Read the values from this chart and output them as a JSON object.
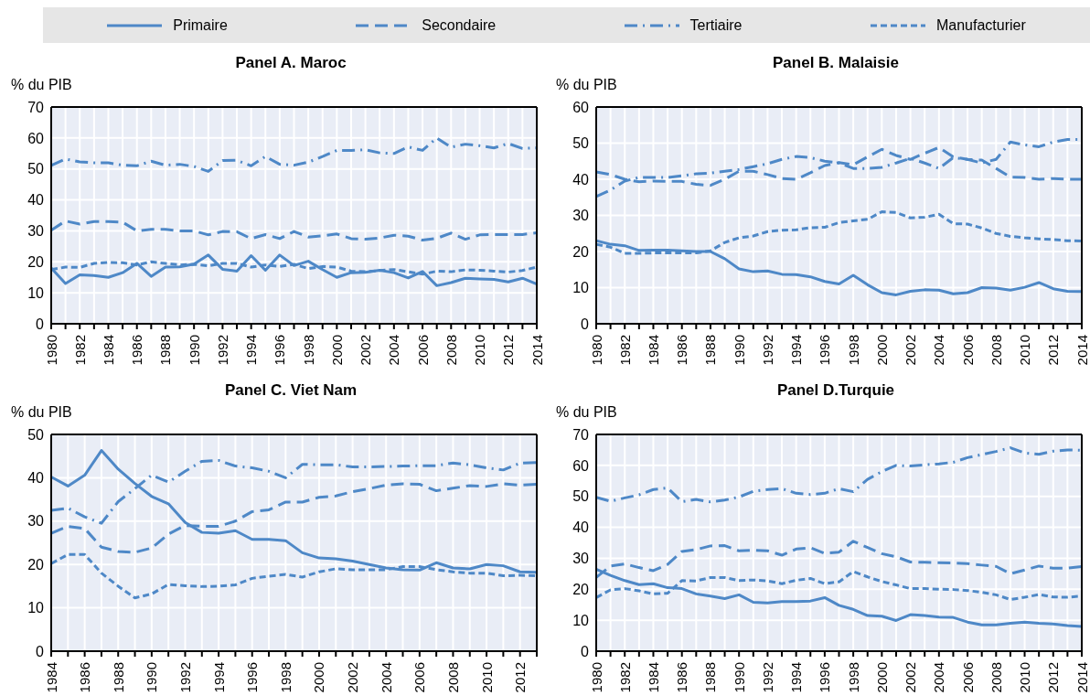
{
  "chart_data": [
    {
      "type": "line",
      "title": "Panel A. Maroc",
      "ylabel": "% du PIB",
      "legend": "top",
      "grid": true,
      "ylim": [
        0,
        70
      ],
      "yticks": [
        0,
        10,
        20,
        30,
        40,
        50,
        60,
        70
      ],
      "categories": [
        "1980",
        null,
        "1982",
        null,
        "1984",
        null,
        "1986",
        null,
        "1988",
        null,
        "1990",
        null,
        "1992",
        null,
        "1994",
        null,
        "1996",
        null,
        "1998",
        null,
        "2000",
        null,
        "2002",
        null,
        "2004",
        null,
        "2006",
        null,
        "2008",
        null,
        "2010",
        null,
        "2012",
        null,
        "2014"
      ],
      "series": [
        {
          "name": "Primaire",
          "color": "#4e88c7",
          "line_style": "solid",
          "values": [
            18,
            13,
            15.8,
            15.6,
            15,
            16.5,
            19.5,
            15.3,
            18.3,
            18.4,
            19.3,
            22.2,
            17.6,
            17,
            22,
            17.3,
            22.2,
            18.8,
            20.2,
            17.5,
            15,
            16.5,
            16.6,
            17.3,
            16.5,
            14.8,
            16.9,
            12.3,
            13.3,
            14.7,
            14.5,
            14.3,
            13.5,
            14.7,
            12.8
          ]
        },
        {
          "name": "Secondaire",
          "color": "#4e88c7",
          "line_style": "dashed",
          "values": [
            30.2,
            33.2,
            32.2,
            33,
            33,
            32.8,
            30,
            30.5,
            30.5,
            30,
            30,
            28.7,
            29.8,
            29.7,
            27.5,
            28.8,
            27.5,
            29.8,
            28,
            28.4,
            29,
            27.5,
            27.3,
            27.7,
            28.6,
            28.3,
            27,
            27.6,
            29.3,
            27.3,
            28.7,
            28.8,
            28.8,
            28.8,
            29.4
          ]
        },
        {
          "name": "Tertiaire",
          "color": "#4e88c7",
          "line_style": "dashdot",
          "values": [
            51.1,
            53.2,
            52.3,
            52,
            52,
            51.2,
            51,
            52.5,
            51.2,
            51.5,
            50.8,
            49.2,
            52.7,
            52.8,
            51,
            54,
            51.5,
            51.2,
            52.2,
            54,
            56,
            56,
            56.2,
            55.2,
            55,
            57.1,
            56,
            60,
            57,
            58,
            57.5,
            56.8,
            58.2,
            56.6,
            56.8
          ]
        },
        {
          "name": "Manufacturier",
          "color": "#4e88c7",
          "line_style": "dotted",
          "values": [
            17.5,
            18.3,
            18.2,
            19.5,
            19.8,
            19.7,
            19,
            20,
            19.5,
            19,
            19.2,
            18.7,
            19.5,
            19.5,
            18.3,
            19,
            18.5,
            19.2,
            17.8,
            18.5,
            18.3,
            17,
            16.8,
            17.2,
            17.5,
            16.8,
            16,
            17,
            16.8,
            17.4,
            17.3,
            17,
            16.7,
            17.2,
            18.3
          ]
        }
      ]
    },
    {
      "type": "line",
      "title": "Panel B. Malaisie",
      "ylabel": "% du PIB",
      "grid": true,
      "ylim": [
        0,
        60
      ],
      "yticks": [
        0,
        10,
        20,
        30,
        40,
        50,
        60
      ],
      "categories": [
        "1980",
        null,
        "1982",
        null,
        "1984",
        null,
        "1986",
        null,
        "1988",
        null,
        "1990",
        null,
        "1992",
        null,
        "1994",
        null,
        "1996",
        null,
        "1998",
        null,
        "2000",
        null,
        "2002",
        null,
        "2004",
        null,
        "2006",
        null,
        "2008",
        null,
        "2010",
        null,
        "2012",
        null,
        "2014"
      ],
      "series": [
        {
          "color": "#4e88c7",
          "line_style": "solid",
          "values": [
            23,
            22,
            21.6,
            20.3,
            20.4,
            20.4,
            20.2,
            20,
            20,
            18,
            15.2,
            14.4,
            14.6,
            13.7,
            13.6,
            13,
            11.7,
            11,
            13.4,
            10.8,
            8.6,
            8,
            9,
            9.4,
            9.3,
            8.3,
            8.6,
            10,
            9.9,
            9.3,
            10.1,
            11.4,
            9.7,
            9,
            8.9
          ]
        },
        {
          "color": "#4e88c7",
          "line_style": "dashed",
          "values": [
            42,
            41.3,
            40,
            39.3,
            39.5,
            39.4,
            39.4,
            38.6,
            38.3,
            40,
            42.2,
            42.2,
            41.3,
            40.2,
            40,
            41.8,
            43.8,
            44.6,
            44,
            46.2,
            48.3,
            46.6,
            45.5,
            47.2,
            48.8,
            46.2,
            45.5,
            45.3,
            43,
            40.6,
            40.5,
            40,
            40.2,
            40,
            40
          ]
        },
        {
          "color": "#4e88c7",
          "line_style": "dashdot",
          "values": [
            35.2,
            37,
            39.5,
            40.5,
            40.5,
            40.5,
            41,
            41.5,
            41.7,
            42.2,
            42.7,
            43.5,
            44.3,
            45.5,
            46.3,
            46,
            45,
            44.5,
            43,
            43,
            43.3,
            44.5,
            45.8,
            44.5,
            43,
            46,
            45.5,
            44.5,
            45.5,
            50.3,
            49.5,
            49,
            50.3,
            51,
            51
          ]
        },
        {
          "color": "#4e88c7",
          "line_style": "dotted",
          "values": [
            22,
            21.2,
            19.5,
            19.5,
            19.6,
            19.6,
            19.6,
            19.6,
            20.2,
            22.5,
            23.8,
            24.3,
            25.5,
            25.9,
            26,
            26.6,
            26.7,
            28,
            28.5,
            28.9,
            31,
            30.8,
            29.3,
            29.5,
            30.3,
            27.7,
            27.6,
            26.5,
            25,
            24.2,
            23.8,
            23.5,
            23.3,
            23,
            22.9
          ]
        }
      ]
    },
    {
      "type": "line",
      "title": "Panel C. Viet Nam",
      "ylabel": "% du PIB",
      "grid": true,
      "ylim": [
        0,
        50
      ],
      "yticks": [
        0,
        10,
        20,
        30,
        40,
        50
      ],
      "categories": [
        "1984",
        null,
        "1986",
        null,
        "1988",
        null,
        "1990",
        null,
        "1992",
        null,
        "1994",
        null,
        "1996",
        null,
        "1998",
        null,
        "2000",
        null,
        "2002",
        null,
        "2004",
        null,
        "2006",
        null,
        "2008",
        null,
        "2010",
        null,
        "2012",
        null
      ],
      "series": [
        {
          "color": "#4e88c7",
          "line_style": "solid",
          "values": [
            40.2,
            38.1,
            40.6,
            46.3,
            42,
            38.7,
            35.7,
            34,
            29.7,
            27.4,
            27.2,
            27.8,
            25.8,
            25.8,
            25.5,
            22.7,
            21.5,
            21.3,
            20.8,
            20,
            19.2,
            18.8,
            18.7,
            20.4,
            19.2,
            19,
            20,
            19.7,
            18.3,
            18.2
          ]
        },
        {
          "color": "#4e88c7",
          "line_style": "dashed",
          "values": [
            27.2,
            28.8,
            28.3,
            24,
            23,
            22.8,
            23.8,
            27,
            29,
            28.8,
            28.8,
            30,
            32.2,
            32.6,
            34.4,
            34.4,
            35.5,
            35.8,
            36.8,
            37.5,
            38.3,
            38.6,
            38.5,
            37,
            37.6,
            38.2,
            38,
            38.6,
            38.3,
            38.5
          ]
        },
        {
          "color": "#4e88c7",
          "line_style": "dashdot",
          "values": [
            32.5,
            33,
            31,
            29.5,
            34.5,
            37.5,
            40.6,
            39,
            41.5,
            43.8,
            44,
            42.7,
            42.3,
            41.5,
            40,
            43.1,
            43,
            43,
            42.5,
            42.5,
            42.6,
            42.7,
            42.8,
            42.8,
            43.4,
            43,
            42.3,
            41.8,
            43.4,
            43.5
          ]
        },
        {
          "color": "#4e88c7",
          "line_style": "dotted",
          "values": [
            20.2,
            22.3,
            22.3,
            18,
            15,
            12.3,
            13.2,
            15.4,
            15.1,
            14.9,
            15,
            15.3,
            16.8,
            17.3,
            17.7,
            17.1,
            18.3,
            19,
            18.8,
            18.8,
            18.8,
            19.5,
            19.5,
            18.8,
            18.3,
            18,
            18,
            17.4,
            17.5,
            17.4
          ]
        }
      ]
    },
    {
      "type": "line",
      "title": "Panel D.Turquie",
      "ylabel": "% du PIB",
      "grid": true,
      "ylim": [
        0,
        70
      ],
      "yticks": [
        0,
        10,
        20,
        30,
        40,
        50,
        60,
        70
      ],
      "categories": [
        "1980",
        null,
        "1982",
        null,
        "1984",
        null,
        "1986",
        null,
        "1988",
        null,
        "1990",
        null,
        "1992",
        null,
        "1994",
        null,
        "1996",
        null,
        "1998",
        null,
        "2000",
        null,
        "2002",
        null,
        "2004",
        null,
        "2006",
        null,
        "2008",
        null,
        "2010",
        null,
        "2012",
        null,
        "2014"
      ],
      "series": [
        {
          "color": "#4e88c7",
          "line_style": "solid",
          "values": [
            26.5,
            24.5,
            22.8,
            21.5,
            21.8,
            20.5,
            20.2,
            18.5,
            17.8,
            17,
            18.2,
            15.8,
            15.6,
            16,
            16,
            16.2,
            17.3,
            14.8,
            13.5,
            11.5,
            11.3,
            9.9,
            11.8,
            11.5,
            11,
            10.9,
            9.4,
            8.5,
            8.5,
            9,
            9.4,
            9,
            8.8,
            8.3,
            8
          ]
        },
        {
          "color": "#4e88c7",
          "line_style": "dashed",
          "values": [
            23.8,
            27.5,
            28.2,
            27,
            26,
            28,
            32.2,
            32.8,
            34,
            34.1,
            32.4,
            32.6,
            32.4,
            31,
            33,
            33.4,
            31.6,
            32,
            35.5,
            33.5,
            31.5,
            30.5,
            28.8,
            28.7,
            28.6,
            28.5,
            28.3,
            27.8,
            27.4,
            25,
            26.2,
            27.5,
            26.8,
            26.8,
            27.3
          ]
        },
        {
          "color": "#4e88c7",
          "line_style": "dashdot",
          "values": [
            49.7,
            48.4,
            49.5,
            50.5,
            52.2,
            52.7,
            48.3,
            49,
            48.2,
            48.8,
            49.8,
            51.6,
            52.2,
            52.5,
            51,
            50.6,
            51,
            52.5,
            51.5,
            55.5,
            58,
            60,
            59.8,
            60.2,
            60.5,
            61,
            62.5,
            63.5,
            64.5,
            65.7,
            64,
            63.6,
            64.6,
            65,
            64.9
          ]
        },
        {
          "color": "#4e88c7",
          "line_style": "dotted",
          "values": [
            17.3,
            19.8,
            20.2,
            19.5,
            18.5,
            18.7,
            22.8,
            22.7,
            23.8,
            23.8,
            22.8,
            23,
            22.7,
            21.8,
            22.9,
            23.5,
            21.8,
            22.4,
            25.7,
            24,
            22.5,
            21.4,
            20.2,
            20.2,
            20,
            19.9,
            19.6,
            19,
            18.2,
            16.7,
            17.4,
            18.3,
            17.5,
            17.4,
            17.8
          ]
        }
      ]
    }
  ]
}
